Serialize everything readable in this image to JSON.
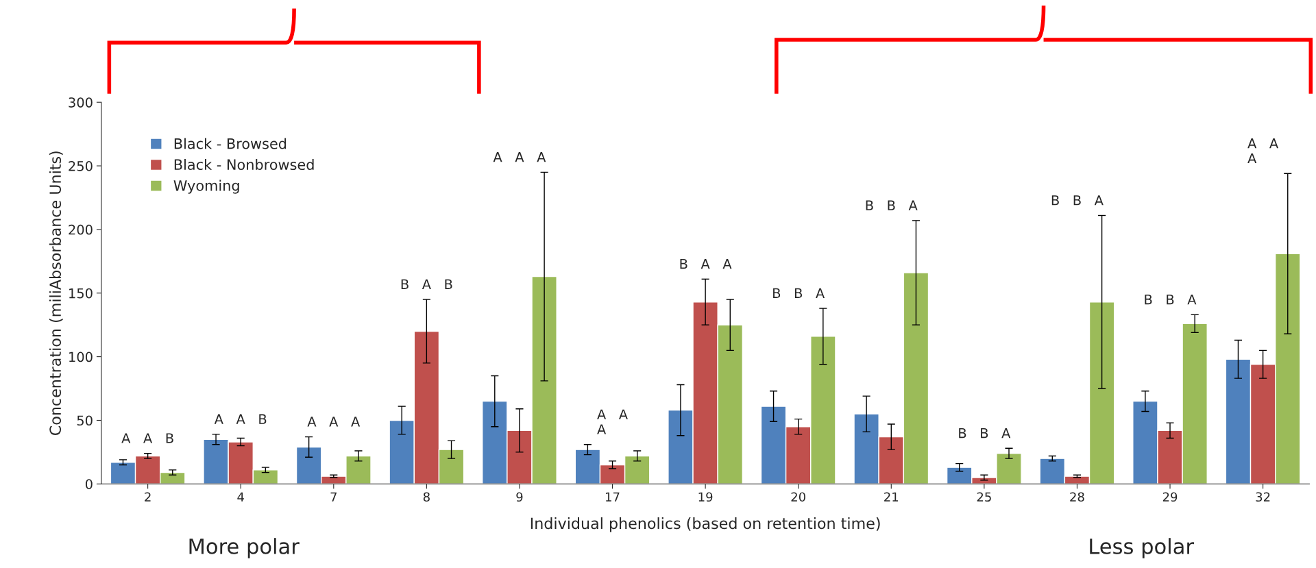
{
  "chart_data": {
    "type": "bar",
    "xlabel": "Individual phenolics (based on retention time)",
    "ylabel": "Concentration (miliAbsorbance Units)",
    "categories": [
      "2",
      "4",
      "7",
      "8",
      "9",
      "17",
      "19",
      "20",
      "21",
      "25",
      "28",
      "29",
      "32"
    ],
    "series": [
      {
        "name": "Black - Browsed",
        "color": "#4f81bd",
        "values": [
          17,
          35,
          29,
          50,
          65,
          27,
          58,
          61,
          55,
          13,
          20,
          65,
          98
        ],
        "errors": [
          2,
          4,
          8,
          11,
          20,
          4,
          20,
          12,
          14,
          3,
          2,
          8,
          15
        ]
      },
      {
        "name": "Black - Nonbrowsed",
        "color": "#c0504d",
        "values": [
          22,
          33,
          6,
          120,
          42,
          15,
          143,
          45,
          37,
          5,
          6,
          42,
          94
        ],
        "errors": [
          2,
          3,
          1,
          25,
          17,
          3,
          18,
          6,
          10,
          2,
          1,
          6,
          11
        ]
      },
      {
        "name": "Wyoming",
        "color": "#9bbb59",
        "values": [
          9,
          11,
          22,
          27,
          163,
          22,
          125,
          116,
          166,
          24,
          143,
          126,
          181
        ],
        "errors": [
          2,
          2,
          4,
          7,
          82,
          4,
          20,
          22,
          41,
          4,
          68,
          7,
          63
        ]
      }
    ],
    "ylim": [
      0,
      300
    ],
    "yticks": [
      0,
      50,
      100,
      150,
      200,
      250,
      300
    ],
    "legend": "top left",
    "grid": false,
    "annotations": [
      "More polar",
      "A   A   B",
      "A   A   B",
      "A   A   A",
      "B   A   B",
      "A   A   A",
      "A   A\nA",
      "B   A   A",
      "B   B   A",
      "B   B   A",
      "B   B   A",
      "B   B   A",
      "B   B   A",
      "A   A\nA",
      "Less polar"
    ]
  }
}
